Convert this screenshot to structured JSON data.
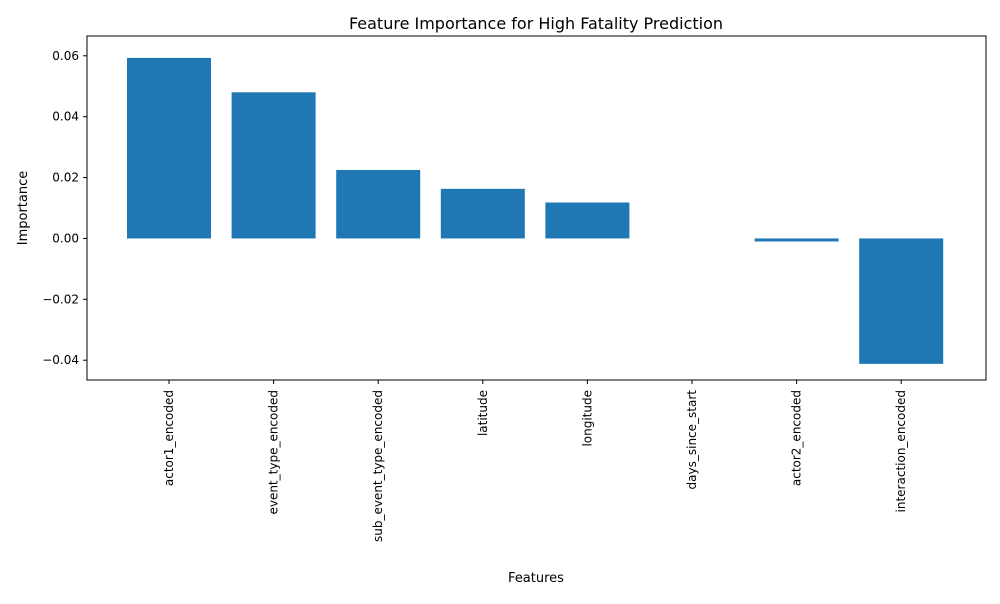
{
  "chart_data": {
    "type": "bar",
    "title": "Feature Importance for High Fatality Prediction",
    "xlabel": "Features",
    "ylabel": "Importance",
    "categories": [
      "actor1_encoded",
      "event_type_encoded",
      "sub_event_type_encoded",
      "latitude",
      "longitude",
      "days_since_start",
      "actor2_encoded",
      "interaction_encoded"
    ],
    "values": [
      0.0593,
      0.048,
      0.0225,
      0.0163,
      0.0118,
      0.0,
      -0.001,
      -0.0412
    ],
    "ylim": [
      -0.0465,
      0.0665
    ],
    "yticks": [
      -0.04,
      -0.02,
      0.0,
      0.02,
      0.04,
      0.06
    ],
    "ytick_labels": [
      "−0.04",
      "−0.02",
      "0.00",
      "0.02",
      "0.04",
      "0.06"
    ],
    "bar_color": "#1f77b4",
    "grid": false,
    "legend": "none"
  }
}
